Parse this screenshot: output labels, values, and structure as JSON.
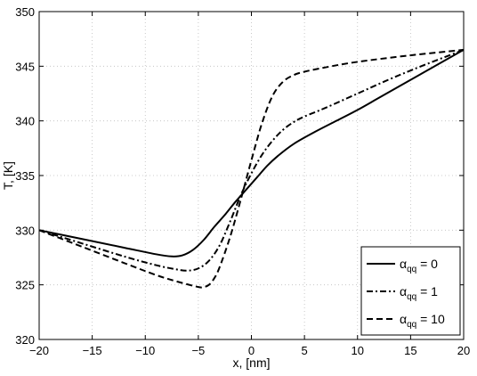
{
  "chart_data": {
    "type": "line",
    "title": "",
    "xlabel": "x, [nm]",
    "ylabel": "T, [K]",
    "xlim": [
      -20,
      20
    ],
    "ylim": [
      320,
      350
    ],
    "xticks": [
      -20,
      -15,
      -10,
      -5,
      0,
      5,
      10,
      15,
      20
    ],
    "yticks": [
      320,
      325,
      330,
      335,
      340,
      345,
      350
    ],
    "xtick_labels": [
      "−20",
      "−15",
      "−10",
      "−5",
      "0",
      "5",
      "10",
      "15",
      "20"
    ],
    "ytick_labels": [
      "320",
      "325",
      "330",
      "335",
      "340",
      "345",
      "350"
    ],
    "grid": true,
    "legend_position": "bottom-right",
    "series": [
      {
        "name": "αqq = 0",
        "legend": {
          "symbol": "α",
          "sub": "qq",
          "value": " = 0"
        },
        "line_style": "solid",
        "color": "#000000",
        "x": [
          -20,
          -16,
          -12,
          -9,
          -7.5,
          -6.5,
          -5.5,
          -4.5,
          -3.5,
          -2.5,
          -1.5,
          -0.5,
          0.5,
          1.5,
          2.5,
          4,
          6,
          8,
          10,
          12,
          14,
          16,
          18,
          20
        ],
        "y": [
          330,
          329.2,
          328.4,
          327.8,
          327.6,
          327.7,
          328.2,
          329.1,
          330.3,
          331.4,
          332.6,
          333.7,
          334.8,
          335.9,
          336.8,
          337.9,
          339.0,
          340.0,
          341.0,
          342.1,
          343.2,
          344.3,
          345.4,
          346.5
        ]
      },
      {
        "name": "αqq = 1",
        "legend": {
          "symbol": "α",
          "sub": "qq",
          "value": " = 1"
        },
        "line_style": "dashdot",
        "color": "#000000",
        "x": [
          -20,
          -16,
          -12,
          -9,
          -7,
          -6,
          -5,
          -4,
          -3,
          -2,
          -1,
          0,
          1,
          2,
          3,
          4,
          5,
          7,
          10,
          13,
          16,
          20
        ],
        "y": [
          330,
          328.8,
          327.6,
          326.8,
          326.4,
          326.3,
          326.5,
          327.2,
          328.6,
          330.8,
          333.2,
          335.2,
          336.9,
          338.2,
          339.2,
          339.9,
          340.4,
          341.2,
          342.5,
          343.8,
          345.0,
          346.5
        ]
      },
      {
        "name": "αqq = 10",
        "legend": {
          "symbol": "α",
          "sub": "qq",
          "value": " = 10"
        },
        "line_style": "dashed",
        "color": "#000000",
        "x": [
          -20,
          -16,
          -12,
          -9,
          -7,
          -5,
          -4.5,
          -4,
          -3.5,
          -3,
          -2,
          -1,
          0,
          1,
          2,
          3,
          4,
          5,
          7,
          10,
          15,
          20
        ],
        "y": [
          330,
          328.5,
          327.0,
          325.9,
          325.3,
          324.8,
          324.8,
          325.0,
          325.6,
          326.6,
          329.4,
          332.8,
          336.4,
          339.8,
          342.3,
          343.6,
          344.2,
          344.5,
          344.9,
          345.4,
          346.0,
          346.5
        ]
      }
    ]
  }
}
